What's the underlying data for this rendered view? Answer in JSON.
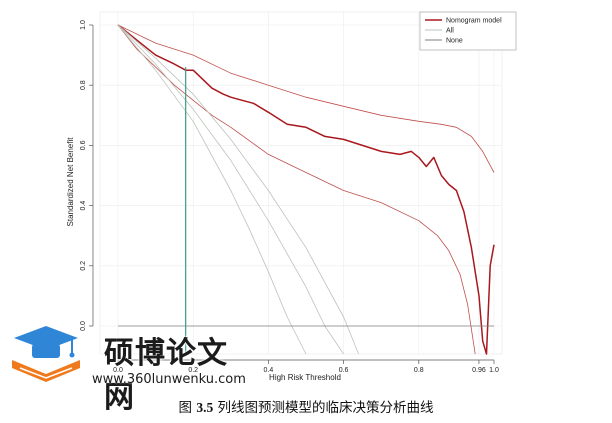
{
  "chart_data": {
    "type": "line",
    "title": "",
    "xlabel": "High Risk Threshold",
    "ylabel": "Standardized Net Benefit",
    "xlim": [
      0.0,
      1.0
    ],
    "ylim": [
      0.0,
      1.0
    ],
    "x_ticks": [
      "0.0",
      "0.2",
      "0.4",
      "0.6",
      "0.8",
      "0.96",
      "1.0"
    ],
    "x_tick_values": [
      0.0,
      0.2,
      0.4,
      0.6,
      0.8,
      0.96,
      1.0
    ],
    "y_ticks": [
      "0.0",
      "0.2",
      "0.4",
      "0.6",
      "0.8",
      "1.0"
    ],
    "y_tick_values": [
      0.0,
      0.2,
      0.4,
      0.6,
      0.8,
      1.0
    ],
    "legend_position": "top-right",
    "grid": true,
    "reference_line_x": 0.18,
    "series": [
      {
        "name": "Nomogram model",
        "color": "#a8181e",
        "x": [
          0,
          0.05,
          0.1,
          0.15,
          0.18,
          0.2,
          0.25,
          0.28,
          0.3,
          0.33,
          0.36,
          0.4,
          0.45,
          0.5,
          0.55,
          0.6,
          0.65,
          0.7,
          0.75,
          0.78,
          0.8,
          0.82,
          0.84,
          0.86,
          0.88,
          0.9,
          0.92,
          0.94,
          0.96,
          0.97,
          0.98,
          0.99,
          1.0
        ],
        "y": [
          1.0,
          0.95,
          0.9,
          0.87,
          0.85,
          0.85,
          0.79,
          0.77,
          0.76,
          0.75,
          0.74,
          0.71,
          0.67,
          0.66,
          0.63,
          0.62,
          0.6,
          0.58,
          0.57,
          0.58,
          0.56,
          0.53,
          0.56,
          0.5,
          0.47,
          0.45,
          0.38,
          0.26,
          0.1,
          -0.05,
          -0.1,
          0.2,
          0.27
        ]
      },
      {
        "name": "Nomogram model CI upper",
        "color": "#c0504d",
        "x": [
          0,
          0.1,
          0.2,
          0.3,
          0.4,
          0.5,
          0.6,
          0.7,
          0.8,
          0.86,
          0.9,
          0.94,
          0.97,
          1.0
        ],
        "y": [
          1.0,
          0.94,
          0.9,
          0.84,
          0.8,
          0.76,
          0.73,
          0.7,
          0.68,
          0.67,
          0.66,
          0.63,
          0.58,
          0.51
        ]
      },
      {
        "name": "Nomogram model CI lower",
        "color": "#c0504d",
        "x": [
          0,
          0.05,
          0.1,
          0.15,
          0.2,
          0.25,
          0.3,
          0.4,
          0.5,
          0.6,
          0.7,
          0.8,
          0.85,
          0.88,
          0.91,
          0.93,
          0.95
        ],
        "y": [
          1.0,
          0.92,
          0.86,
          0.8,
          0.75,
          0.7,
          0.66,
          0.57,
          0.51,
          0.45,
          0.41,
          0.35,
          0.3,
          0.25,
          0.17,
          0.07,
          -0.1
        ]
      },
      {
        "name": "All",
        "color": "#b9c4b9",
        "x": [
          0,
          0.1,
          0.2,
          0.3,
          0.35,
          0.4,
          0.45,
          0.5
        ],
        "y": [
          1.0,
          0.85,
          0.68,
          0.45,
          0.32,
          0.18,
          0.03,
          -0.1
        ]
      },
      {
        "name": "All (second curve)",
        "color": "#b9c4b9",
        "x": [
          0,
          0.1,
          0.2,
          0.3,
          0.4,
          0.5,
          0.55,
          0.6
        ],
        "y": [
          1.0,
          0.87,
          0.72,
          0.55,
          0.35,
          0.13,
          0.0,
          -0.1
        ]
      },
      {
        "name": "All (third curve)",
        "color": "#b9c4b9",
        "x": [
          0,
          0.1,
          0.2,
          0.3,
          0.4,
          0.5,
          0.6,
          0.64
        ],
        "y": [
          1.0,
          0.89,
          0.77,
          0.62,
          0.45,
          0.26,
          0.03,
          -0.1
        ]
      },
      {
        "name": "None",
        "color": "#7f7f7f",
        "x": [
          0,
          1.0
        ],
        "y": [
          0,
          0
        ]
      }
    ],
    "legend": [
      {
        "label": "Nomogram model",
        "color": "#a8181e"
      },
      {
        "label": "All",
        "color": "#b9c4b9"
      },
      {
        "label": "None",
        "color": "#7f7f7f"
      }
    ]
  },
  "reference_line_color": "#3b9b8a",
  "watermark": {
    "site_name": "硕博论文网",
    "url": "www.360lunwenku.com",
    "logo_colors": [
      "#2f86d6",
      "#f07a1b"
    ]
  },
  "caption": {
    "label": "图",
    "number": "3.5",
    "text": "列线图预测模型的临床决策分析曲线"
  }
}
